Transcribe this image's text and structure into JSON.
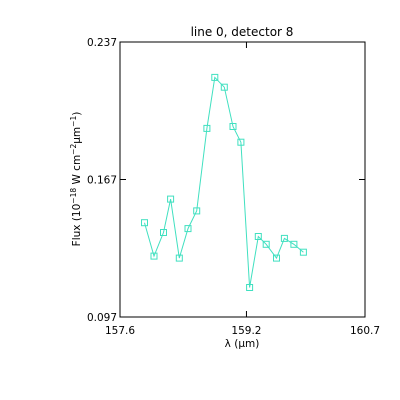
{
  "chart_data": {
    "type": "line",
    "title": "line 0, detector 8",
    "xlabel": "λ (μm)",
    "ylabel_parts": {
      "prefix": "Flux (10",
      "exp1": "−18",
      "mid1": " W cm",
      "exp2": "−2",
      "mid2": "μm",
      "exp3": "−1",
      "suffix": ")"
    },
    "xlim": [
      157.6,
      160.7
    ],
    "ylim": [
      0.097,
      0.237
    ],
    "xticks": [
      157.6,
      159.2,
      160.7
    ],
    "xtick_labels": [
      "157.6",
      "159.2",
      "160.7"
    ],
    "yticks": [
      0.097,
      0.167,
      0.237
    ],
    "ytick_labels": [
      "0.097",
      "0.167",
      "0.237"
    ],
    "grid": false,
    "line_color": "#40e0c0",
    "marker": "square",
    "series": [
      {
        "x": [
          157.91,
          158.03,
          158.15,
          158.24,
          158.35,
          158.46,
          158.57,
          158.7,
          158.8,
          158.92,
          159.03,
          159.13,
          159.24,
          159.35,
          159.45,
          159.58,
          159.68,
          159.8,
          159.92,
          160.03,
          160.12
        ],
        "y": [
          0.145,
          0.128,
          0.14,
          0.157,
          0.127,
          0.142,
          0.151,
          0.193,
          0.219,
          0.214,
          0.194,
          0.186,
          0.112,
          0.138,
          0.134,
          0.127,
          0.137,
          0.134,
          0.13,
          null,
          null
        ]
      }
    ]
  }
}
